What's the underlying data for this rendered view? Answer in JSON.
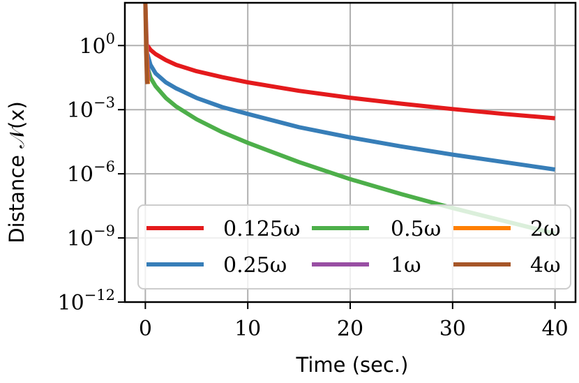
{
  "chart_data": {
    "type": "line",
    "xlabel": "Time (sec.)",
    "ylabel": "Distance 𝒩(x)",
    "yscale": "log",
    "xlim": [
      -2,
      42
    ],
    "ylim_exp": [
      -12,
      2
    ],
    "grid": true,
    "x_ticks": [
      {
        "v": 0,
        "label": "0"
      },
      {
        "v": 10,
        "label": "10"
      },
      {
        "v": 20,
        "label": "20"
      },
      {
        "v": 30,
        "label": "30"
      },
      {
        "v": 40,
        "label": "40"
      }
    ],
    "y_ticks": [
      {
        "e": 0,
        "base": "10",
        "sup": "0"
      },
      {
        "e": -3,
        "base": "10",
        "sup": "−3"
      },
      {
        "e": -6,
        "base": "10",
        "sup": "−6"
      },
      {
        "e": -9,
        "base": "10",
        "sup": "−9"
      },
      {
        "e": -12,
        "base": "10",
        "sup": "−12"
      }
    ],
    "legend_position": "lower-right",
    "series": [
      {
        "name": "0.125ω",
        "color": "#e41a1c",
        "x": [
          0.2,
          0.5,
          1,
          2,
          3,
          5,
          7.5,
          10,
          15,
          20,
          25,
          30,
          35,
          40
        ],
        "log10_y": [
          0,
          -0.2,
          -0.4,
          -0.68,
          -0.9,
          -1.2,
          -1.48,
          -1.72,
          -2.12,
          -2.44,
          -2.72,
          -2.97,
          -3.2,
          -3.4
        ]
      },
      {
        "name": "0.25ω",
        "color": "#377eb8",
        "x": [
          0.2,
          0.5,
          1,
          2,
          3,
          5,
          7.5,
          10,
          15,
          20,
          25,
          30,
          35,
          40
        ],
        "log10_y": [
          -0.4,
          -0.9,
          -1.3,
          -1.72,
          -2.0,
          -2.45,
          -2.88,
          -3.2,
          -3.82,
          -4.3,
          -4.72,
          -5.1,
          -5.45,
          -5.8
        ]
      },
      {
        "name": "0.5ω",
        "color": "#4daf4a",
        "x": [
          0.2,
          0.5,
          1,
          2,
          3,
          5,
          7.5,
          10,
          15,
          20,
          25,
          30,
          35,
          40
        ],
        "log10_y": [
          -1.0,
          -1.5,
          -1.9,
          -2.45,
          -2.85,
          -3.45,
          -4.05,
          -4.55,
          -5.45,
          -6.25,
          -6.95,
          -7.6,
          -8.2,
          -8.8
        ]
      },
      {
        "name": "1ω",
        "color": "#984ea3",
        "x": [
          0,
          0.06,
          0.12,
          0.18,
          0.25,
          0.32
        ],
        "log10_y": [
          2,
          1.2,
          0.3,
          -0.5,
          -1.1,
          -1.6
        ]
      },
      {
        "name": "2ω",
        "color": "#ff7f00",
        "x": [
          0,
          0.05,
          0.1,
          0.15,
          0.2,
          0.25
        ],
        "log10_y": [
          2,
          1.0,
          0.0,
          -0.8,
          -1.4,
          -1.8
        ]
      },
      {
        "name": "4ω",
        "color": "#a65628",
        "x": [
          0,
          0.04,
          0.08,
          0.12,
          0.16,
          0.2
        ],
        "log10_y": [
          2,
          0.8,
          -0.3,
          -1.0,
          -1.6,
          -1.8
        ]
      }
    ]
  }
}
